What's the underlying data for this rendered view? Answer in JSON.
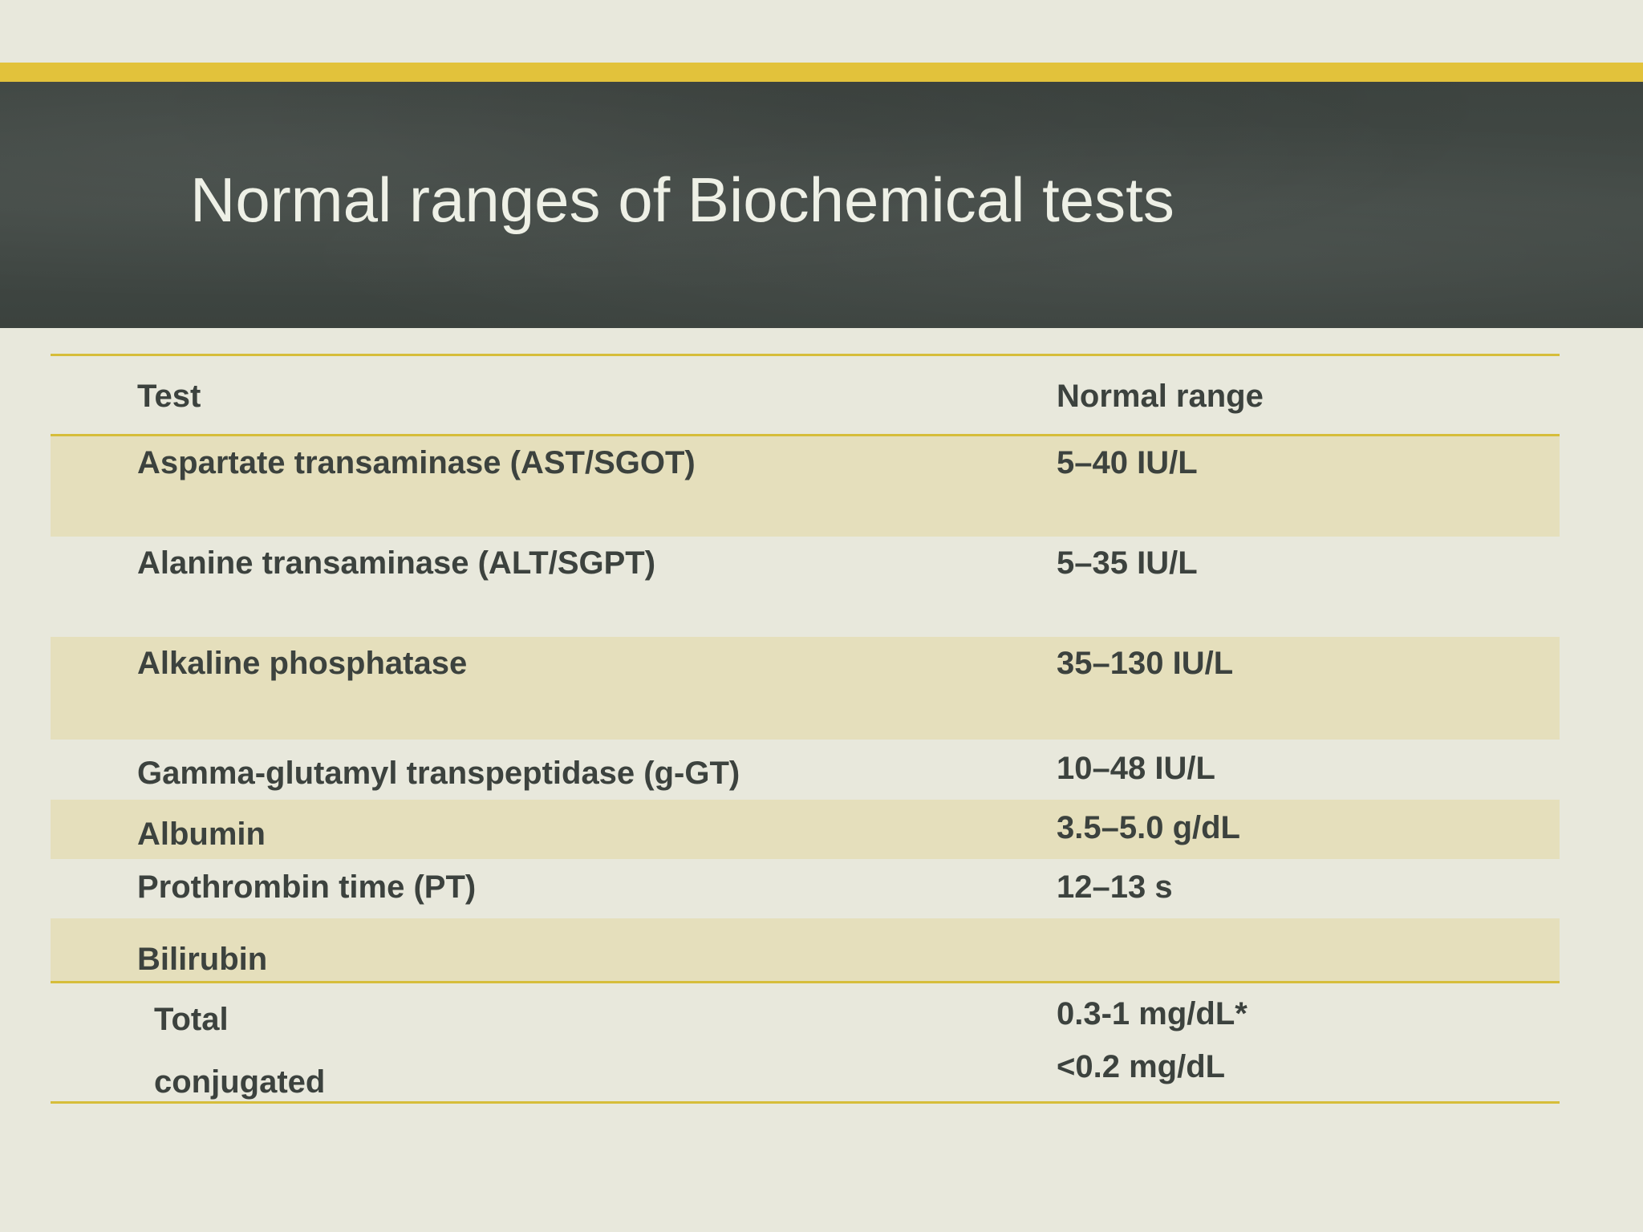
{
  "slide": {
    "title": "Normal ranges of Biochemical tests"
  },
  "table": {
    "headers": {
      "test": "Test",
      "range": "Normal range"
    },
    "rows": [
      {
        "test": "Aspartate transaminase (AST/SGOT)",
        "range": "5–40 IU/L"
      },
      {
        "test": "Alanine transaminase (ALT/SGPT)",
        "range": "5–35 IU/L"
      },
      {
        "test": "Alkaline phosphatase",
        "range": "35–130 IU/L"
      },
      {
        "test": "Gamma-glutamyl transpeptidase (g-GT)",
        "range": "10–48 IU/L"
      },
      {
        "test": "Albumin",
        "range": "3.5–5.0 g/dL"
      },
      {
        "test": "Prothrombin time (PT)",
        "range": "12–13 s"
      },
      {
        "test": "Bilirubin",
        "range": ""
      }
    ],
    "bilirubin": {
      "total_label": "Total",
      "total_range": "0.3-1 mg/dL*",
      "conjugated_label": "conjugated",
      "conjugated_range": "<0.2 mg/dL"
    }
  },
  "colors": {
    "background": "#e8e8dc",
    "accent": "#e2c23b",
    "title_band": "#3f4642",
    "row_shade": "#e5dfbc",
    "text": "#3c423e",
    "title_text": "#eef0e6"
  }
}
